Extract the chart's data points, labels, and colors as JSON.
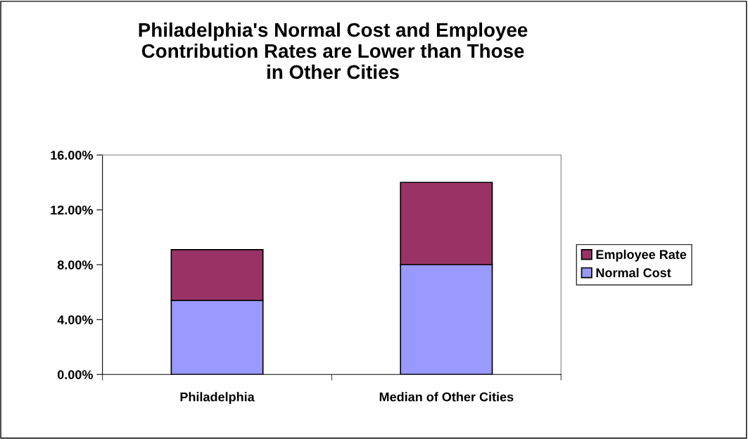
{
  "chart_data": {
    "type": "bar",
    "stacked": true,
    "title": "Philadelphia's Normal Cost and Employee\nContribution Rates are Lower than Those\nin Other Cities",
    "categories": [
      "Philadelphia",
      "Median of Other Cities"
    ],
    "series": [
      {
        "name": "Normal Cost",
        "color": "#9999ff",
        "values": [
          5.4,
          8.0
        ]
      },
      {
        "name": "Employee Rate",
        "color": "#993366",
        "values": [
          3.7,
          6.0
        ]
      }
    ],
    "ylim": [
      0,
      16
    ],
    "yticks": [
      {
        "value": 0,
        "label": "0.00%"
      },
      {
        "value": 4,
        "label": "4.00%"
      },
      {
        "value": 8,
        "label": "8.00%"
      },
      {
        "value": 12,
        "label": "12.00%"
      },
      {
        "value": 16,
        "label": "16.00%"
      }
    ],
    "grid": false,
    "legend": "right"
  }
}
